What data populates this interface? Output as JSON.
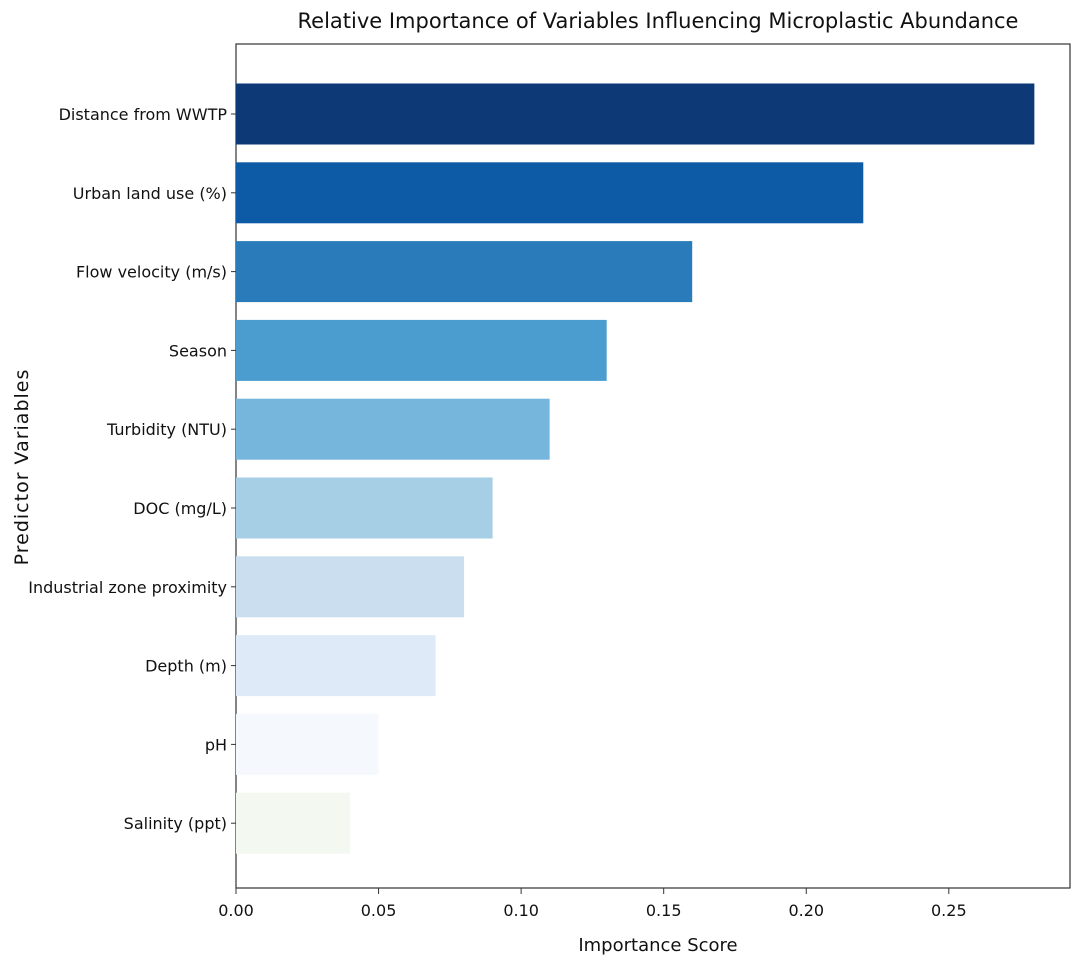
{
  "chart_data": {
    "type": "bar",
    "orientation": "horizontal",
    "title": "Relative Importance of Variables Influencing Microplastic Abundance",
    "xlabel": "Importance Score",
    "ylabel": "Predictor Variables",
    "categories": [
      "Distance from WWTP",
      "Urban land use (%)",
      "Flow velocity (m/s)",
      "Season",
      "Turbidity (NTU)",
      "DOC (mg/L)",
      "Industrial zone proximity",
      "Depth (m)",
      "pH",
      "Salinity (ppt)"
    ],
    "values": [
      0.28,
      0.22,
      0.16,
      0.13,
      0.11,
      0.09,
      0.08,
      0.07,
      0.05,
      0.04
    ],
    "colors": [
      "#0d3a77",
      "#0d5aa6",
      "#2a7bba",
      "#4b9ccf",
      "#76b5dc",
      "#a6cfe5",
      "#cadef0",
      "#deeaf7",
      "#f5f9fe",
      "#f3f8f1"
    ],
    "xticks": [
      "0.00",
      "0.05",
      "0.10",
      "0.15",
      "0.20",
      "0.25"
    ],
    "xtick_values": [
      0,
      0.05,
      0.1,
      0.15,
      0.2,
      0.25
    ],
    "xlim": [
      0,
      0.2925
    ],
    "grid": false,
    "legend": "none"
  }
}
